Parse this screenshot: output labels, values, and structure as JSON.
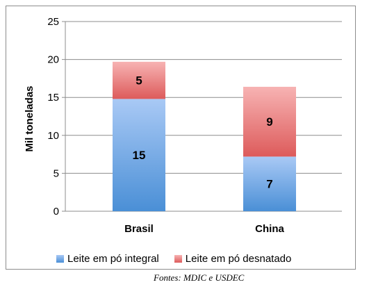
{
  "chart_data": {
    "type": "bar",
    "stacked": true,
    "categories": [
      "Brasil",
      "China"
    ],
    "series": [
      {
        "name": "Leite em pó integral",
        "values": [
          15,
          7
        ],
        "color_top": "#a9c9f5",
        "color_bottom": "#4a8fd6"
      },
      {
        "name": "Leite em pó desnatado",
        "values": [
          5,
          9
        ],
        "color_top": "#f7b3b3",
        "color_bottom": "#dd5b5b"
      }
    ],
    "series_values_rendered": [
      [
        14.8,
        7.2
      ],
      [
        4.9,
        9.2
      ]
    ],
    "data_labels": [
      [
        "15",
        "7"
      ],
      [
        "5",
        "9"
      ]
    ],
    "title": "",
    "xlabel": "",
    "ylabel": "Mil toneladas",
    "ylim": [
      0,
      25
    ],
    "yticks": [
      "0",
      "5",
      "10",
      "15",
      "20",
      "25"
    ],
    "grid": true,
    "legend_position": "bottom"
  },
  "source_note": "Fontes: MDIC e USDEC"
}
